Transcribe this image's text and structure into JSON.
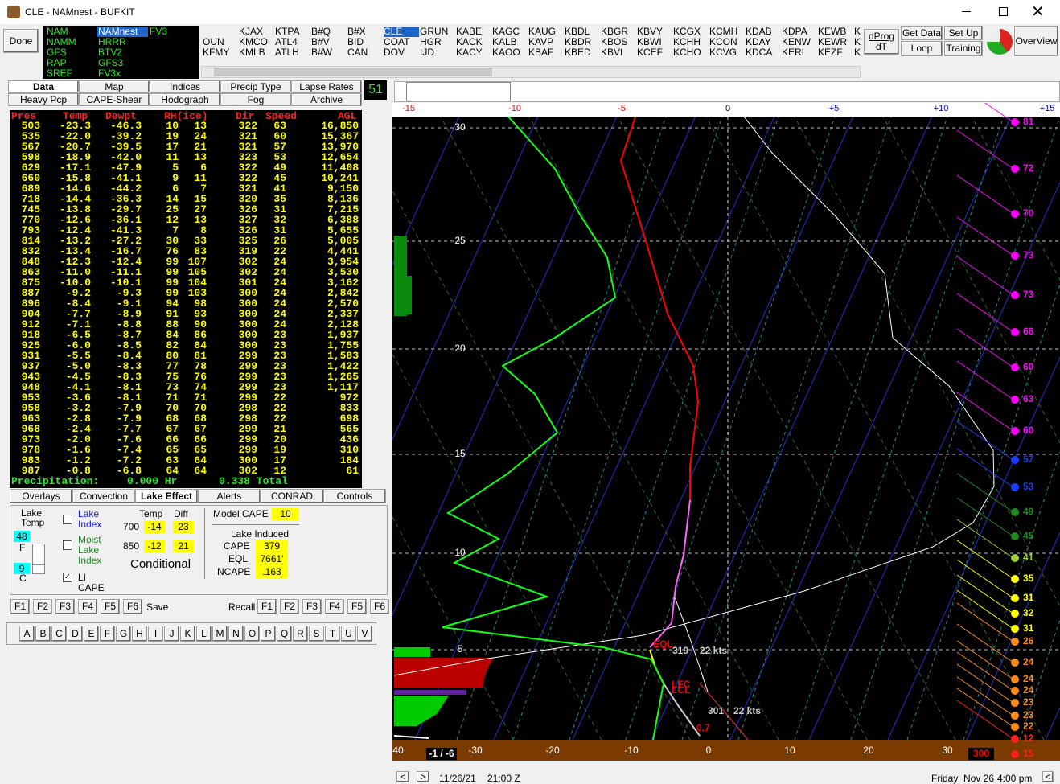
{
  "window": {
    "title": "CLE - NAMnest - BUFKIT"
  },
  "toolbar": {
    "done": "Done",
    "models": [
      [
        "NAM",
        "NAMM",
        "GFS",
        "RAP",
        "SREF"
      ],
      [
        "NAMnest",
        "HRRR",
        "BTV2",
        "GFS3",
        "FV3x"
      ],
      [
        "FV3"
      ]
    ],
    "stations": [
      [
        "",
        "OUN",
        "KFMY"
      ],
      [
        "KJAX",
        "KMCO",
        "KMLB"
      ],
      [
        "KTPA",
        "ATL4",
        "ATLH"
      ],
      [
        "B#Q",
        "B#V",
        "B#W"
      ],
      [
        "B#X",
        "BID",
        "CAN"
      ],
      [
        "CLE",
        "COAT",
        "DOV"
      ],
      [
        "GRUN",
        "HGR",
        "IJD"
      ],
      [
        "KABE",
        "KACK",
        "KACY"
      ],
      [
        "KAGC",
        "KALB",
        "KAOO"
      ],
      [
        "KAUG",
        "KAVP",
        "KBAF"
      ],
      [
        "KBDL",
        "KBDR",
        "KBED"
      ],
      [
        "KBGR",
        "KBOS",
        "KBVI"
      ],
      [
        "KBVY",
        "KBWI",
        "KCEF"
      ],
      [
        "KCGX",
        "KCHH",
        "KCHO"
      ],
      [
        "KCMH",
        "KCON",
        "KCVG"
      ],
      [
        "KDAB",
        "KDAY",
        "KDCA"
      ],
      [
        "KDPA",
        "KENW",
        "KERI"
      ],
      [
        "KEWB",
        "KEWR",
        "KEZF"
      ],
      [
        "K",
        "K",
        "K"
      ]
    ],
    "dprog": "dProg dT",
    "get_data": "Get Data",
    "set_up": "Set Up",
    "loop": "Loop",
    "training": "Training",
    "overview": "OverView"
  },
  "tabs": {
    "row1": [
      "Data",
      "Map",
      "Indices",
      "Precip Type",
      "Lapse Rates"
    ],
    "row2": [
      "Heavy Pcp",
      "CAPE-Shear",
      "Hodograph",
      "Fog",
      "Archive"
    ],
    "frame": "51"
  },
  "table": {
    "header": [
      "Pres",
      "Temp",
      "Dewpt",
      "RH(ice)",
      "Dir",
      "Speed",
      "AGL"
    ],
    "rows": [
      [
        "503",
        "-23.3",
        "-46.3",
        "10",
        "13",
        "322",
        "63",
        "16,850"
      ],
      [
        "535",
        "-22.0",
        "-39.2",
        "19",
        "24",
        "321",
        "60",
        "15,367"
      ],
      [
        "567",
        "-20.7",
        "-39.5",
        "17",
        "21",
        "321",
        "57",
        "13,970"
      ],
      [
        "598",
        "-18.9",
        "-42.0",
        "11",
        "13",
        "323",
        "53",
        "12,654"
      ],
      [
        "629",
        "-17.1",
        "-47.9",
        "5",
        "6",
        "322",
        "49",
        "11,408"
      ],
      [
        "660",
        "-15.8",
        "-41.1",
        "9",
        "11",
        "322",
        "45",
        "10,241"
      ],
      [
        "689",
        "-14.6",
        "-44.2",
        "6",
        "7",
        "321",
        "41",
        "9,150"
      ],
      [
        "718",
        "-14.4",
        "-36.3",
        "14",
        "15",
        "320",
        "35",
        "8,136"
      ],
      [
        "745",
        "-13.8",
        "-29.7",
        "25",
        "27",
        "326",
        "31",
        "7,215"
      ],
      [
        "770",
        "-12.6",
        "-36.1",
        "12",
        "13",
        "327",
        "32",
        "6,388"
      ],
      [
        "793",
        "-12.4",
        "-41.3",
        "7",
        "8",
        "326",
        "31",
        "5,655"
      ],
      [
        "814",
        "-13.2",
        "-27.2",
        "30",
        "33",
        "325",
        "26",
        "5,005"
      ],
      [
        "832",
        "-13.4",
        "-16.7",
        "76",
        "83",
        "319",
        "22",
        "4,441"
      ],
      [
        "848",
        "-12.3",
        "-12.4",
        "99",
        "107",
        "302",
        "24",
        "3,954"
      ],
      [
        "863",
        "-11.0",
        "-11.1",
        "99",
        "105",
        "302",
        "24",
        "3,530"
      ],
      [
        "875",
        "-10.0",
        "-10.1",
        "99",
        "104",
        "301",
        "24",
        "3,162"
      ],
      [
        "887",
        "-9.2",
        "-9.3",
        "99",
        "103",
        "300",
        "24",
        "2,842"
      ],
      [
        "896",
        "-8.4",
        "-9.1",
        "94",
        "98",
        "300",
        "24",
        "2,570"
      ],
      [
        "904",
        "-7.7",
        "-8.9",
        "91",
        "93",
        "300",
        "24",
        "2,337"
      ],
      [
        "912",
        "-7.1",
        "-8.8",
        "88",
        "90",
        "300",
        "24",
        "2,128"
      ],
      [
        "918",
        "-6.5",
        "-8.7",
        "84",
        "86",
        "300",
        "23",
        "1,937"
      ],
      [
        "925",
        "-6.0",
        "-8.5",
        "82",
        "84",
        "300",
        "23",
        "1,755"
      ],
      [
        "931",
        "-5.5",
        "-8.4",
        "80",
        "81",
        "299",
        "23",
        "1,583"
      ],
      [
        "937",
        "-5.0",
        "-8.3",
        "77",
        "78",
        "299",
        "23",
        "1,422"
      ],
      [
        "943",
        "-4.5",
        "-8.3",
        "75",
        "76",
        "299",
        "23",
        "1,265"
      ],
      [
        "948",
        "-4.1",
        "-8.1",
        "73",
        "74",
        "299",
        "23",
        "1,117"
      ],
      [
        "953",
        "-3.6",
        "-8.1",
        "71",
        "71",
        "299",
        "22",
        "972"
      ],
      [
        "958",
        "-3.2",
        "-7.9",
        "70",
        "70",
        "298",
        "22",
        "833"
      ],
      [
        "963",
        "-2.8",
        "-7.9",
        "68",
        "68",
        "298",
        "22",
        "698"
      ],
      [
        "968",
        "-2.4",
        "-7.7",
        "67",
        "67",
        "299",
        "21",
        "565"
      ],
      [
        "973",
        "-2.0",
        "-7.6",
        "66",
        "66",
        "299",
        "20",
        "436"
      ],
      [
        "978",
        "-1.6",
        "-7.4",
        "65",
        "65",
        "299",
        "19",
        "310"
      ],
      [
        "983",
        "-1.2",
        "-7.2",
        "63",
        "64",
        "300",
        "17",
        "184"
      ],
      [
        "987",
        "-0.8",
        "-6.8",
        "64",
        "64",
        "302",
        "12",
        "61"
      ]
    ],
    "precipitation": [
      "Precipitation:",
      "0.000 Hr",
      "0.338 Total"
    ]
  },
  "panel_tabs": [
    "Overlays",
    "Convection",
    "Lake Effect",
    "Alerts",
    "CONRAD",
    "Controls"
  ],
  "lake": {
    "lake_temp": "Lake Temp",
    "temp_f": "48",
    "f": "F",
    "temp_c": "9",
    "c": "C",
    "lake_index": "Lake Index",
    "moist_lake_index": "Moist Lake Index",
    "li_cape": "LI CAPE",
    "temp": "Temp",
    "diff": "Diff",
    "l700": "700",
    "t700": "-14",
    "d700": "23",
    "l850": "850",
    "t850": "-12",
    "d850": "21",
    "conditional": "Conditional",
    "model_cape": "Model CAPE",
    "model_cape_value": "10",
    "lake_induced": "Lake Induced",
    "cape": "CAPE",
    "cape_value": "379",
    "eql": "EQL",
    "eql_value": "7661'",
    "ncape": "NCAPE",
    "ncape_value": ".163"
  },
  "fkeys": {
    "left": [
      "F1",
      "F2",
      "F3",
      "F4",
      "F5",
      "F6"
    ],
    "save": "Save",
    "recall": "Recall",
    "right": [
      "F1",
      "F2",
      "F3",
      "F4",
      "F5",
      "F6"
    ]
  },
  "letters": [
    "A",
    "B",
    "C",
    "D",
    "E",
    "F",
    "G",
    "H",
    "I",
    "J",
    "K",
    "L",
    "M",
    "N",
    "O",
    "P",
    "Q",
    "R",
    "S",
    "T",
    "U",
    "V"
  ],
  "sounding": {
    "top_scale": [
      "-15",
      "-10",
      "-5",
      "0",
      "+5",
      "+10",
      "+15"
    ],
    "heights": [
      "30",
      "25",
      "20",
      "15",
      "10",
      "5"
    ],
    "bottom_scale": [
      "40",
      "-30",
      "-20",
      "-10",
      "0",
      "10",
      "20",
      "30"
    ],
    "winds": [
      {
        "label": "81",
        "color": "#ff00ff"
      },
      {
        "label": "72",
        "color": "#ff00ff"
      },
      {
        "label": "70",
        "color": "#ff00ff"
      },
      {
        "label": "73",
        "color": "#ff00ff"
      },
      {
        "label": "73",
        "color": "#ff00ff"
      },
      {
        "label": "66",
        "color": "#ff00ff"
      },
      {
        "label": "60",
        "color": "#ff00ff"
      },
      {
        "label": "63",
        "color": "#ff00ff"
      },
      {
        "label": "60",
        "color": "#ff00ff"
      },
      {
        "label": "57",
        "color": "#1a3cff"
      },
      {
        "label": "53",
        "color": "#1a3cff"
      },
      {
        "label": "49",
        "color": "#1f8a1f"
      },
      {
        "label": "45",
        "color": "#1f8a1f"
      },
      {
        "label": "41",
        "color": "#9acd32"
      },
      {
        "label": "35",
        "color": "#ffff00"
      },
      {
        "label": "31",
        "color": "#ffff00"
      },
      {
        "label": "32",
        "color": "#ffff00"
      },
      {
        "label": "31",
        "color": "#ffff00"
      },
      {
        "label": "26",
        "color": "#ff8c1a"
      },
      {
        "label": "24",
        "color": "#ff8c1a"
      },
      {
        "label": "24",
        "color": "#ff8c1a"
      },
      {
        "label": "24",
        "color": "#ff8c1a"
      },
      {
        "label": "23",
        "color": "#ff8c1a"
      },
      {
        "label": "23",
        "color": "#ff8c1a"
      },
      {
        "label": "22",
        "color": "#ff8c1a"
      },
      {
        "label": "12",
        "color": "#ff2020"
      },
      {
        "label": "15",
        "color": "#ff2020"
      }
    ],
    "annotations": {
      "eql": "EQL",
      "upper_dir": "319",
      "upper_speed": "22 kts",
      "lfc": "LFC",
      "lcl": "LCL",
      "lower_dir": "301",
      "lower_speed": "22 kts",
      "surface_value": "0.7"
    },
    "surface": {
      "temps": "-1 / -6",
      "dir": "300",
      "speed": "15"
    }
  },
  "status": {
    "date": "11/26/21",
    "time": "21:00 Z",
    "day": "Friday",
    "local_date": "Nov 26",
    "local_time": "4:00 pm"
  }
}
